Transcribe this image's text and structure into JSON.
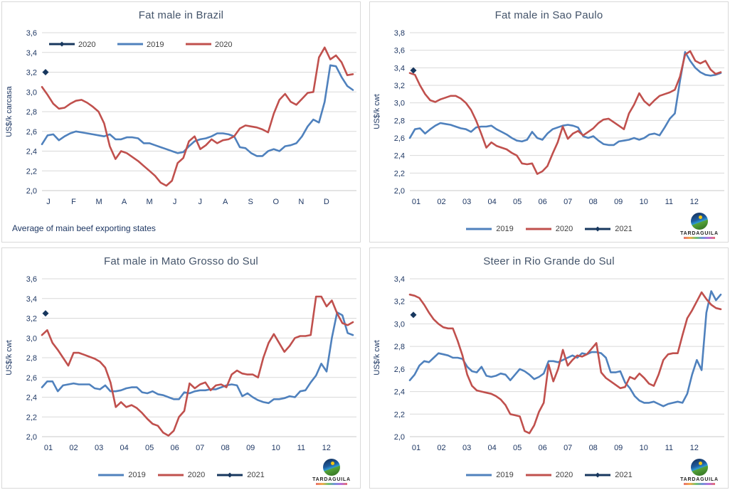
{
  "colors": {
    "blue": "#4F81BD",
    "red": "#C0504D",
    "navy": "#17375E",
    "grid": "#D9D9D9",
    "axis_line": "#C9C9C9",
    "axis_text": "#1F3864",
    "title_text": "#44546A",
    "legend_text": "#404040"
  },
  "logo": {
    "text": "TARDAGUILA"
  },
  "chart_data": [
    {
      "type": "line",
      "title": "Fat male in Brazil",
      "ylabel": "US$/k carcasa",
      "ylim": [
        2.0,
        3.6
      ],
      "ytick_step": 0.2,
      "grid": "horizontal",
      "y_tick_labels": [
        "3,6",
        "3,4",
        "3,2",
        "3,0",
        "2,8",
        "2,6",
        "2,4",
        "2,2",
        "2,0"
      ],
      "x_tick_labels": [
        "J",
        "F",
        "M",
        "A",
        "M",
        "J",
        "J",
        "A",
        "S",
        "O",
        "N",
        "D"
      ],
      "legend_position": "top-inside",
      "legend": [
        {
          "label": "2020",
          "color_key": "navy",
          "marker": "diamond"
        },
        {
          "label": "2019",
          "color_key": "blue"
        },
        {
          "label": "2020",
          "color_key": "red"
        }
      ],
      "series": [
        {
          "name": "2019",
          "color_key": "blue",
          "values": [
            2.47,
            2.56,
            2.57,
            2.51,
            2.55,
            2.58,
            2.6,
            2.59,
            2.58,
            2.57,
            2.56,
            2.55,
            2.57,
            2.52,
            2.52,
            2.54,
            2.54,
            2.53,
            2.48,
            2.48,
            2.46,
            2.44,
            2.42,
            2.4,
            2.38,
            2.39,
            2.45,
            2.5,
            2.52,
            2.53,
            2.55,
            2.58,
            2.58,
            2.57,
            2.55,
            2.44,
            2.43,
            2.38,
            2.35,
            2.35,
            2.4,
            2.42,
            2.4,
            2.45,
            2.46,
            2.48,
            2.55,
            2.65,
            2.72,
            2.69,
            2.9,
            3.27,
            3.26,
            3.15,
            3.06,
            3.02
          ]
        },
        {
          "name": "2020",
          "color_key": "red",
          "values": [
            3.05,
            2.97,
            2.88,
            2.83,
            2.84,
            2.88,
            2.91,
            2.92,
            2.89,
            2.85,
            2.8,
            2.68,
            2.45,
            2.32,
            2.4,
            2.38,
            2.34,
            2.3,
            2.25,
            2.2,
            2.15,
            2.08,
            2.05,
            2.1,
            2.28,
            2.33,
            2.5,
            2.55,
            2.42,
            2.46,
            2.52,
            2.48,
            2.51,
            2.52,
            2.55,
            2.63,
            2.66,
            2.65,
            2.64,
            2.62,
            2.59,
            2.78,
            2.92,
            2.98,
            2.9,
            2.87,
            2.93,
            2.99,
            3.0,
            3.35,
            3.45,
            3.33,
            3.37,
            3.3,
            3.17,
            3.18
          ]
        }
      ],
      "marker_point": {
        "label": "2020",
        "value": 3.2,
        "color_key": "navy",
        "position": "first-x"
      },
      "footnote": "Average of main beef exporting states",
      "show_logo": false
    },
    {
      "type": "line",
      "title": "Fat male in Sao Paulo",
      "ylabel": "US$/k cwt",
      "ylim": [
        2.0,
        3.8
      ],
      "ytick_step": 0.2,
      "grid": "horizontal",
      "y_tick_labels": [
        "3,8",
        "3,6",
        "3,4",
        "3,2",
        "3,0",
        "2,8",
        "2,6",
        "2,4",
        "2,2",
        "2,0"
      ],
      "x_tick_labels": [
        "01",
        "02",
        "03",
        "04",
        "05",
        "06",
        "07",
        "08",
        "09",
        "10",
        "11",
        "12"
      ],
      "legend_position": "bottom",
      "legend": [
        {
          "label": "2019",
          "color_key": "blue"
        },
        {
          "label": "2020",
          "color_key": "red"
        },
        {
          "label": "2021",
          "color_key": "navy",
          "marker": "diamond"
        }
      ],
      "series": [
        {
          "name": "2019",
          "color_key": "blue",
          "values": [
            2.6,
            2.7,
            2.71,
            2.65,
            2.7,
            2.74,
            2.77,
            2.76,
            2.75,
            2.73,
            2.71,
            2.7,
            2.67,
            2.72,
            2.73,
            2.73,
            2.74,
            2.7,
            2.67,
            2.64,
            2.6,
            2.57,
            2.56,
            2.58,
            2.67,
            2.6,
            2.58,
            2.65,
            2.7,
            2.72,
            2.74,
            2.75,
            2.74,
            2.72,
            2.62,
            2.6,
            2.62,
            2.57,
            2.53,
            2.52,
            2.52,
            2.56,
            2.57,
            2.58,
            2.6,
            2.58,
            2.6,
            2.64,
            2.65,
            2.63,
            2.72,
            2.82,
            2.88,
            3.25,
            3.58,
            3.48,
            3.4,
            3.35,
            3.32,
            3.31,
            3.32,
            3.34
          ]
        },
        {
          "name": "2020",
          "color_key": "red",
          "values": [
            3.34,
            3.32,
            3.2,
            3.1,
            3.03,
            3.01,
            3.04,
            3.06,
            3.08,
            3.08,
            3.05,
            3.0,
            2.92,
            2.8,
            2.65,
            2.49,
            2.55,
            2.51,
            2.49,
            2.47,
            2.43,
            2.4,
            2.31,
            2.3,
            2.31,
            2.19,
            2.22,
            2.28,
            2.42,
            2.55,
            2.73,
            2.59,
            2.65,
            2.68,
            2.63,
            2.67,
            2.71,
            2.77,
            2.81,
            2.82,
            2.78,
            2.74,
            2.7,
            2.88,
            2.98,
            3.11,
            3.02,
            2.97,
            3.03,
            3.08,
            3.1,
            3.12,
            3.15,
            3.3,
            3.55,
            3.59,
            3.48,
            3.45,
            3.48,
            3.38,
            3.33,
            3.35
          ]
        }
      ],
      "marker_point": {
        "label": "2021",
        "value": 3.37,
        "color_key": "navy",
        "position": "first-x"
      },
      "footnote": "",
      "show_logo": true
    },
    {
      "type": "line",
      "title": "Fat male in Mato Grosso do Sul",
      "ylabel": "US$/k cwt",
      "ylim": [
        2.0,
        3.6
      ],
      "ytick_step": 0.2,
      "grid": "horizontal",
      "y_tick_labels": [
        "3,6",
        "3,4",
        "3,2",
        "3,0",
        "2,8",
        "2,6",
        "2,4",
        "2,2",
        "2,0"
      ],
      "x_tick_labels": [
        "01",
        "02",
        "03",
        "04",
        "05",
        "06",
        "07",
        "08",
        "09",
        "10",
        "11",
        "12"
      ],
      "legend_position": "bottom",
      "legend": [
        {
          "label": "2019",
          "color_key": "blue"
        },
        {
          "label": "2020",
          "color_key": "red"
        },
        {
          "label": "2021",
          "color_key": "navy",
          "marker": "diamond"
        }
      ],
      "series": [
        {
          "name": "2019",
          "color_key": "blue",
          "values": [
            2.5,
            2.56,
            2.56,
            2.46,
            2.52,
            2.53,
            2.54,
            2.53,
            2.53,
            2.53,
            2.49,
            2.48,
            2.52,
            2.46,
            2.46,
            2.47,
            2.49,
            2.5,
            2.5,
            2.45,
            2.44,
            2.46,
            2.43,
            2.42,
            2.4,
            2.38,
            2.38,
            2.45,
            2.44,
            2.46,
            2.47,
            2.47,
            2.48,
            2.48,
            2.5,
            2.52,
            2.53,
            2.52,
            2.41,
            2.44,
            2.4,
            2.37,
            2.35,
            2.34,
            2.38,
            2.38,
            2.39,
            2.41,
            2.4,
            2.46,
            2.47,
            2.55,
            2.62,
            2.74,
            2.66,
            3.0,
            3.26,
            3.23,
            3.05,
            3.03
          ]
        },
        {
          "name": "2020",
          "color_key": "red",
          "values": [
            3.03,
            3.08,
            2.95,
            2.88,
            2.8,
            2.72,
            2.85,
            2.85,
            2.83,
            2.81,
            2.79,
            2.76,
            2.7,
            2.55,
            2.3,
            2.35,
            2.3,
            2.32,
            2.29,
            2.24,
            2.18,
            2.13,
            2.11,
            2.04,
            2.01,
            2.06,
            2.2,
            2.26,
            2.54,
            2.49,
            2.53,
            2.55,
            2.47,
            2.52,
            2.53,
            2.5,
            2.63,
            2.67,
            2.64,
            2.63,
            2.63,
            2.6,
            2.8,
            2.95,
            3.04,
            2.95,
            2.86,
            2.92,
            3.0,
            3.02,
            3.02,
            3.03,
            3.42,
            3.42,
            3.32,
            3.38,
            3.25,
            3.15,
            3.13,
            3.16
          ]
        }
      ],
      "marker_point": {
        "label": "2021",
        "value": 3.25,
        "color_key": "navy",
        "position": "first-x"
      },
      "footnote": "",
      "show_logo": true
    },
    {
      "type": "line",
      "title": "Steer in Rio Grande do Sul",
      "ylabel": "US$/k cwt",
      "ylim": [
        2.0,
        3.4
      ],
      "ytick_step": 0.2,
      "grid": "horizontal",
      "y_tick_labels": [
        "3,4",
        "3,2",
        "3,0",
        "2,8",
        "2,6",
        "2,4",
        "2,2",
        "2,0"
      ],
      "x_tick_labels": [
        "01",
        "02",
        "03",
        "04",
        "05",
        "06",
        "07",
        "08",
        "09",
        "10",
        "11",
        "12"
      ],
      "legend_position": "bottom",
      "legend": [
        {
          "label": "2019",
          "color_key": "blue"
        },
        {
          "label": "2020",
          "color_key": "red"
        },
        {
          "label": "2021",
          "color_key": "navy",
          "marker": "diamond"
        }
      ],
      "series": [
        {
          "name": "2019",
          "color_key": "blue",
          "values": [
            2.5,
            2.55,
            2.63,
            2.67,
            2.66,
            2.7,
            2.74,
            2.73,
            2.72,
            2.7,
            2.7,
            2.69,
            2.62,
            2.58,
            2.57,
            2.62,
            2.54,
            2.53,
            2.54,
            2.56,
            2.55,
            2.5,
            2.55,
            2.6,
            2.58,
            2.55,
            2.51,
            2.53,
            2.56,
            2.67,
            2.67,
            2.66,
            2.68,
            2.7,
            2.72,
            2.7,
            2.74,
            2.73,
            2.75,
            2.75,
            2.74,
            2.7,
            2.57,
            2.57,
            2.58,
            2.48,
            2.43,
            2.36,
            2.32,
            2.3,
            2.3,
            2.31,
            2.29,
            2.27,
            2.29,
            2.3,
            2.31,
            2.3,
            2.38,
            2.55,
            2.68,
            2.59,
            3.1,
            3.29,
            3.21,
            3.26
          ]
        },
        {
          "name": "2020",
          "color_key": "red",
          "values": [
            3.26,
            3.25,
            3.23,
            3.17,
            3.1,
            3.04,
            3.0,
            2.97,
            2.96,
            2.96,
            2.85,
            2.72,
            2.55,
            2.45,
            2.41,
            2.4,
            2.39,
            2.38,
            2.36,
            2.33,
            2.28,
            2.2,
            2.19,
            2.18,
            2.05,
            2.03,
            2.1,
            2.22,
            2.3,
            2.64,
            2.49,
            2.6,
            2.77,
            2.63,
            2.68,
            2.72,
            2.71,
            2.73,
            2.78,
            2.83,
            2.57,
            2.52,
            2.49,
            2.46,
            2.43,
            2.44,
            2.53,
            2.51,
            2.56,
            2.52,
            2.47,
            2.45,
            2.55,
            2.68,
            2.73,
            2.74,
            2.74,
            2.9,
            3.05,
            3.12,
            3.2,
            3.28,
            3.22,
            3.17,
            3.14,
            3.13
          ]
        }
      ],
      "marker_point": {
        "label": "2021",
        "value": 3.08,
        "color_key": "navy",
        "position": "first-x"
      },
      "footnote": "",
      "show_logo": true
    }
  ]
}
